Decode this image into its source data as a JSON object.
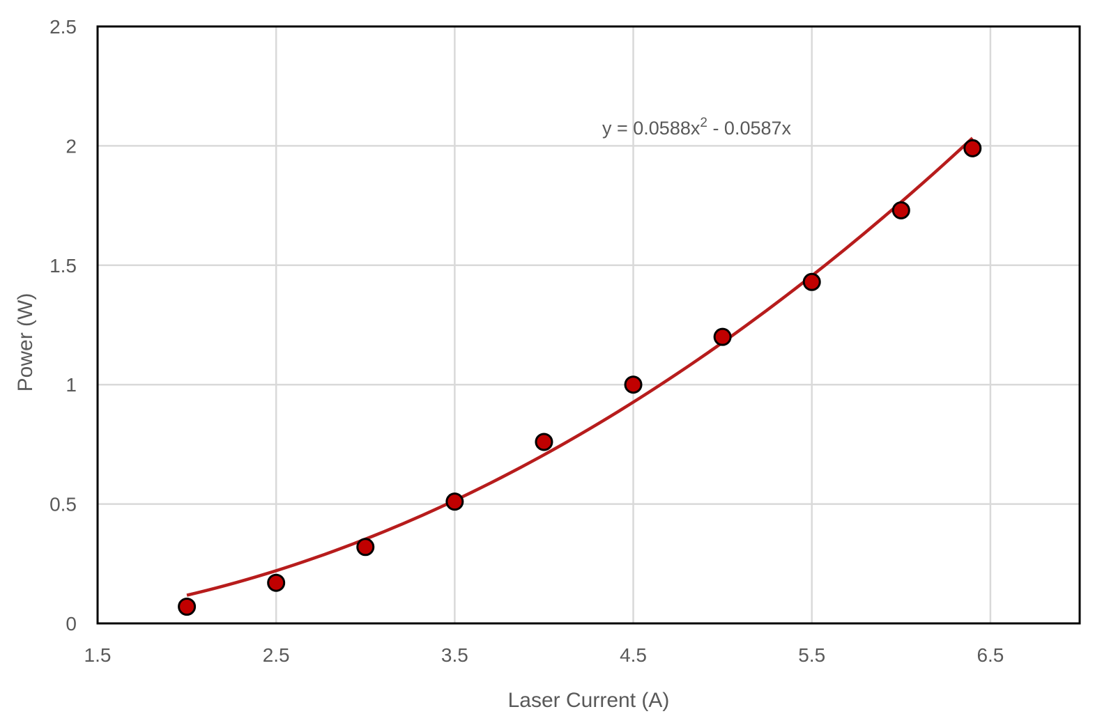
{
  "chart_data": {
    "type": "scatter",
    "title": "",
    "xlabel": "Laser Current (A)",
    "ylabel": "Power (W)",
    "xlim": [
      1.5,
      7
    ],
    "ylim": [
      0,
      2.5
    ],
    "x_ticks": [
      "1.5",
      "2.5",
      "3.5",
      "4.5",
      "5.5",
      "6.5"
    ],
    "y_ticks": [
      "0",
      "0.5",
      "1",
      "1.5",
      "2",
      "2.5"
    ],
    "grid": true,
    "series": [
      {
        "x": [
          2.0,
          2.5,
          3.0,
          3.5,
          4.0,
          4.5,
          5.0,
          5.5,
          6.0,
          6.4
        ],
        "y": [
          0.07,
          0.17,
          0.32,
          0.51,
          0.76,
          1.0,
          1.2,
          1.43,
          1.73,
          1.99
        ]
      }
    ],
    "trendline": {
      "type": "polynomial",
      "order": 2,
      "coefficients": {
        "a": 0.0588,
        "b": -0.0587,
        "c": 0
      },
      "x_range": [
        2.0,
        6.4
      ],
      "equation_prefix": "y = 0.0588x",
      "equation_superscript": "2",
      "equation_suffix": " - 0.0587x"
    },
    "colors": {
      "marker_fill": "#c00000",
      "marker_stroke": "#000000",
      "trendline": "#b71c1c",
      "grid": "#d9d9d9",
      "frame": "#000000",
      "text": "#595959"
    }
  }
}
